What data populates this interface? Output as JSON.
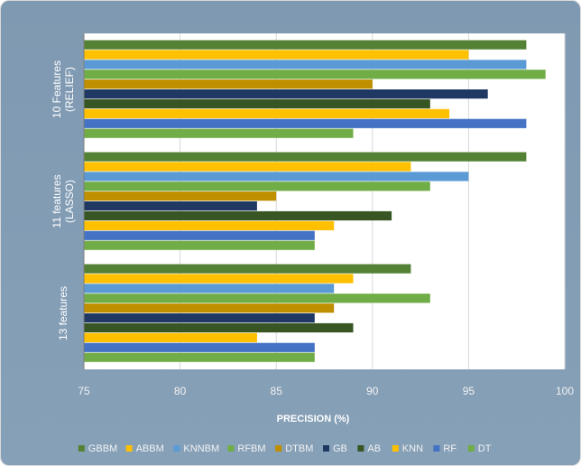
{
  "chart_data": {
    "type": "bar",
    "orientation": "horizontal",
    "xlabel": "PRECISION (%)",
    "xlim": [
      75,
      100
    ],
    "xticks": [
      75,
      80,
      85,
      90,
      95,
      100
    ],
    "grid": true,
    "legend_position": "bottom",
    "categories": [
      "10 Features (RELIEF)",
      "11 features (LASSO)",
      "13 features"
    ],
    "category_display": [
      [
        "10 Features",
        "(RELIEF)"
      ],
      [
        "11 features",
        "(LASSO)"
      ],
      [
        "13 features"
      ]
    ],
    "series": [
      {
        "name": "GBBM",
        "color": "#548235",
        "values": [
          98,
          98,
          92
        ]
      },
      {
        "name": "ABBM",
        "color": "#ffc000",
        "values": [
          95,
          92,
          89
        ]
      },
      {
        "name": "KNNBM",
        "color": "#5b9bd5",
        "values": [
          98,
          95,
          88
        ]
      },
      {
        "name": "RFBM",
        "color": "#70ad47",
        "values": [
          99,
          93,
          93
        ]
      },
      {
        "name": "DTBM",
        "color": "#bf8f00",
        "values": [
          90,
          85,
          88
        ]
      },
      {
        "name": "GB",
        "color": "#203864",
        "values": [
          96,
          84,
          87
        ]
      },
      {
        "name": "AB",
        "color": "#375623",
        "values": [
          93,
          91,
          89
        ]
      },
      {
        "name": "KNN",
        "color": "#ffc000",
        "values": [
          94,
          88,
          84
        ]
      },
      {
        "name": "RF",
        "color": "#4472c4",
        "values": [
          98,
          87,
          87
        ]
      },
      {
        "name": "DT",
        "color": "#70ad47",
        "values": [
          89,
          87,
          87
        ]
      }
    ]
  }
}
